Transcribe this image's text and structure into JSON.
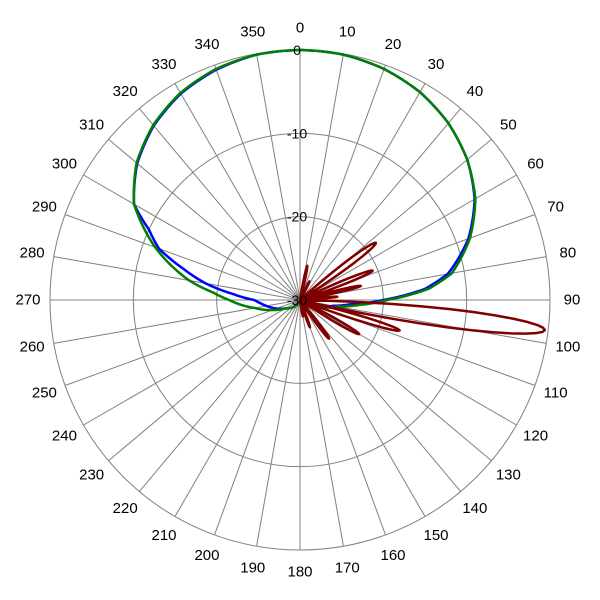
{
  "chart_data": {
    "type": "line",
    "coordinate_system": "polar",
    "direction": "clockwise",
    "zero_angle": "top",
    "angle_ticks": [
      0,
      10,
      20,
      30,
      40,
      50,
      60,
      70,
      80,
      90,
      100,
      110,
      120,
      130,
      140,
      150,
      160,
      170,
      180,
      190,
      200,
      210,
      220,
      230,
      240,
      250,
      260,
      270,
      280,
      290,
      300,
      310,
      320,
      330,
      340,
      350
    ],
    "radial_ticks": [
      0,
      -10,
      -20,
      -30
    ],
    "radial_range": [
      -30,
      0
    ],
    "grid": true,
    "legend": "none",
    "series": [
      {
        "color": "#0000ff",
        "points": [
          [
            0,
            0
          ],
          [
            10,
            -0.1
          ],
          [
            20,
            -0.5
          ],
          [
            30,
            -1.2
          ],
          [
            40,
            -2.3
          ],
          [
            50,
            -3.8
          ],
          [
            60,
            -5.8
          ],
          [
            70,
            -8.5
          ],
          [
            80,
            -12.0
          ],
          [
            85,
            -15.0
          ],
          [
            90,
            -20.0
          ],
          [
            95,
            -24.0
          ],
          [
            100,
            -26.0
          ],
          [
            110,
            -27.5
          ],
          [
            130,
            -28.8
          ],
          [
            150,
            -29.5
          ],
          [
            180,
            -30.0
          ],
          [
            210,
            -29.5
          ],
          [
            240,
            -28.0
          ],
          [
            255,
            -26.5
          ],
          [
            265,
            -25.3
          ],
          [
            270,
            -24.5
          ],
          [
            275,
            -22.0
          ],
          [
            280,
            -18.5
          ],
          [
            285,
            -15.5
          ],
          [
            290,
            -12.0
          ],
          [
            295,
            -10.0
          ],
          [
            300,
            -7.0
          ],
          [
            310,
            -4.5
          ],
          [
            320,
            -2.7
          ],
          [
            330,
            -1.4
          ],
          [
            340,
            -0.6
          ],
          [
            350,
            -0.1
          ],
          [
            360,
            0
          ]
        ]
      },
      {
        "color": "#008000",
        "points": [
          [
            0,
            0
          ],
          [
            10,
            -0.1
          ],
          [
            20,
            -0.5
          ],
          [
            30,
            -1.2
          ],
          [
            40,
            -2.3
          ],
          [
            50,
            -3.8
          ],
          [
            60,
            -5.7
          ],
          [
            70,
            -8.3
          ],
          [
            80,
            -11.5
          ],
          [
            85,
            -14.5
          ],
          [
            90,
            -19.5
          ],
          [
            95,
            -23.0
          ],
          [
            100,
            -25.5
          ],
          [
            110,
            -27.5
          ],
          [
            130,
            -28.8
          ],
          [
            150,
            -29.5
          ],
          [
            180,
            -30.0
          ],
          [
            210,
            -29.5
          ],
          [
            240,
            -28.0
          ],
          [
            250,
            -26.5
          ],
          [
            260,
            -24.5
          ],
          [
            265,
            -23.0
          ],
          [
            270,
            -21.5
          ],
          [
            275,
            -19.5
          ],
          [
            280,
            -16.5
          ],
          [
            285,
            -14.0
          ],
          [
            290,
            -11.5
          ],
          [
            300,
            -7.0
          ],
          [
            310,
            -4.4
          ],
          [
            320,
            -2.6
          ],
          [
            330,
            -1.3
          ],
          [
            340,
            -0.5
          ],
          [
            350,
            -0.1
          ],
          [
            360,
            0
          ]
        ]
      },
      {
        "color": "#800000",
        "lobes": [
          {
            "center": 12,
            "peak": -25.8,
            "halfwidth": 3
          },
          {
            "center": 27,
            "peak": -27.5,
            "halfwidth": 3
          },
          {
            "center": 53,
            "peak": -18.6,
            "halfwidth": 5
          },
          {
            "center": 68,
            "peak": -20.6,
            "halfwidth": 4
          },
          {
            "center": 77,
            "peak": -22.5,
            "halfwidth": 3
          },
          {
            "center": 85,
            "peak": -25.5,
            "halfwidth": 2
          },
          {
            "center": 97,
            "peak": -0.4,
            "halfwidth": 6
          },
          {
            "center": 107,
            "peak": -17.5,
            "halfwidth": 4
          },
          {
            "center": 120,
            "peak": -21.8,
            "halfwidth": 4
          },
          {
            "center": 143,
            "peak": -24.2,
            "halfwidth": 4
          },
          {
            "center": 160,
            "peak": -26.5,
            "halfwidth": 3
          },
          {
            "center": 170,
            "peak": -28.0,
            "halfwidth": 2
          }
        ],
        "floor": -30
      }
    ]
  }
}
